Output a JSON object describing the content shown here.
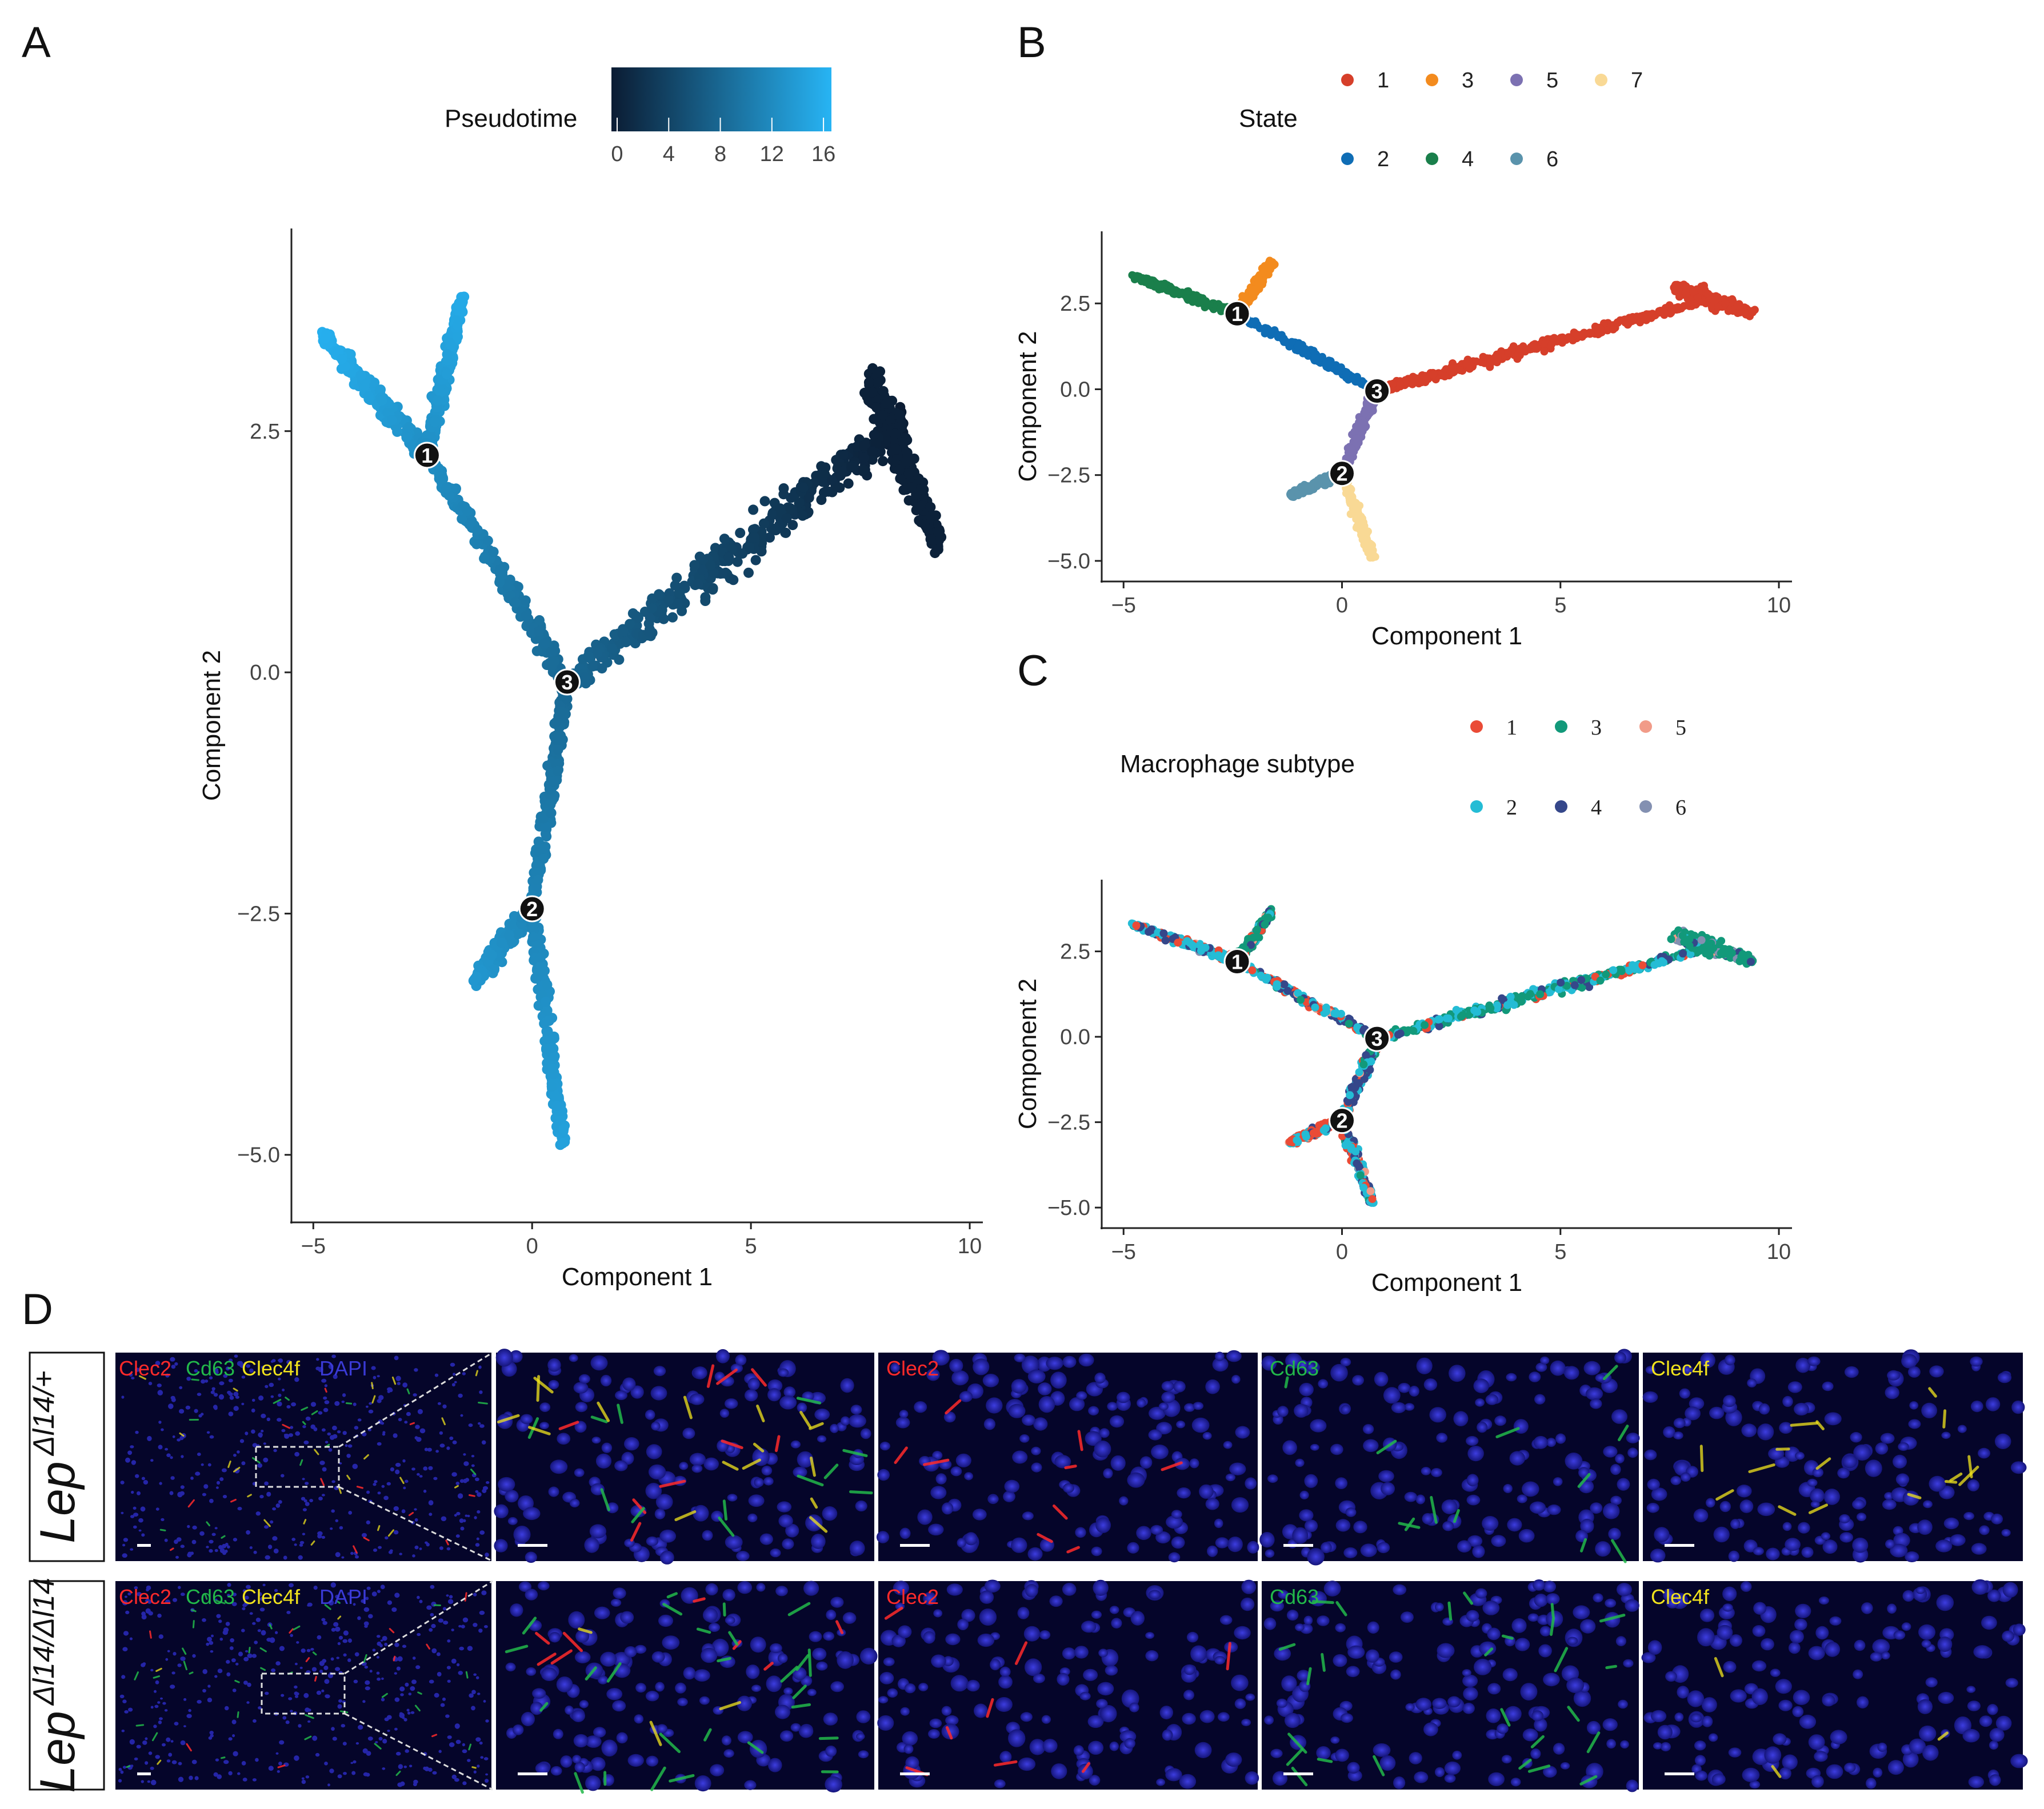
{
  "figure": {
    "panel_labels": [
      "A",
      "B",
      "C",
      "D"
    ]
  },
  "colors": {
    "pseudotime_low": "#0b1c33",
    "pseudotime_high": "#27b4f4",
    "state": [
      "#d63f2a",
      "#0f6db5",
      "#f38b1e",
      "#1a7f4b",
      "#7c71b2",
      "#5a93ac",
      "#f9d995"
    ],
    "subtype": [
      "#ea4b36",
      "#24bcd5",
      "#12997a",
      "#35478a",
      "#f19b88",
      "#8390b1"
    ],
    "channels": {
      "Clec2": "#ff2a2a",
      "Cd63": "#22b84a",
      "Clec4f": "#f2e41c",
      "DAPI": "#3a3ad6"
    }
  },
  "chart_data": [
    {
      "id": "A",
      "type": "scatter",
      "title": "",
      "xlabel": "Component 1",
      "ylabel": "Component 2",
      "xlim": [
        -5.5,
        10.3
      ],
      "ylim": [
        -5.7,
        4.6
      ],
      "x_ticks": [
        -5,
        0,
        5,
        10
      ],
      "x_tick_labels": [
        "−5",
        "0",
        "5",
        "10"
      ],
      "y_ticks": [
        -5,
        -2.5,
        0,
        2.5
      ],
      "y_tick_labels": [
        "−5.0",
        "−2.5",
        "0.0",
        "2.5"
      ],
      "color_by": "Pseudotime",
      "legend": {
        "title": "Pseudotime",
        "type": "colorbar",
        "ticks": [
          "0",
          "4",
          "8",
          "12",
          "16"
        ],
        "range": [
          0,
          16
        ]
      },
      "branch_points": [
        {
          "label": "1",
          "x": -2.4,
          "y": 2.25
        },
        {
          "label": "2",
          "x": 0.0,
          "y": -2.45
        },
        {
          "label": "3",
          "x": 0.8,
          "y": -0.1
        }
      ],
      "trajectory_segments": [
        {
          "from": [
            8.5,
            2.6
          ],
          "to": [
            0.8,
            -0.1
          ],
          "pseudotime": [
            0,
            8
          ]
        },
        {
          "from": [
            0.8,
            -0.1
          ],
          "to": [
            -2.4,
            2.25
          ],
          "pseudotime": [
            8,
            12
          ]
        },
        {
          "from": [
            -2.4,
            2.25
          ],
          "to": [
            -4.8,
            3.5
          ],
          "pseudotime": [
            12,
            15.5
          ]
        },
        {
          "from": [
            -2.4,
            2.25
          ],
          "to": [
            -1.6,
            3.9
          ],
          "pseudotime": [
            12,
            15
          ]
        },
        {
          "from": [
            0.8,
            -0.1
          ],
          "to": [
            0.0,
            -2.45
          ],
          "pseudotime": [
            8,
            11
          ]
        },
        {
          "from": [
            0.0,
            -2.45
          ],
          "to": [
            -1.3,
            -3.2
          ],
          "pseudotime": [
            11,
            13
          ]
        },
        {
          "from": [
            0.0,
            -2.45
          ],
          "to": [
            0.7,
            -4.9
          ],
          "pseudotime": [
            11,
            14
          ]
        }
      ]
    },
    {
      "id": "B",
      "type": "scatter",
      "xlabel": "Component 1",
      "ylabel": "Component 2",
      "xlim": [
        -5.5,
        10.3
      ],
      "ylim": [
        -5.6,
        4.6
      ],
      "x_ticks": [
        -5,
        0,
        5,
        10
      ],
      "x_tick_labels": [
        "−5",
        "0",
        "5",
        "10"
      ],
      "y_ticks": [
        -5,
        -2.5,
        0,
        2.5
      ],
      "y_tick_labels": [
        "−5.0",
        "−2.5",
        "0.0",
        "2.5"
      ],
      "color_by": "State",
      "legend": {
        "title": "State",
        "placement": "top",
        "entries": [
          "1",
          "2",
          "3",
          "4",
          "5",
          "6",
          "7"
        ]
      },
      "branch_points": [
        {
          "label": "1",
          "x": -2.4,
          "y": 2.2
        },
        {
          "label": "2",
          "x": 0.0,
          "y": -2.45
        },
        {
          "label": "3",
          "x": 0.8,
          "y": -0.05
        }
      ],
      "state_segments": [
        {
          "state": "1",
          "from": [
            0.8,
            -0.05
          ],
          "to": [
            8.6,
            2.7
          ]
        },
        {
          "state": "2",
          "from": [
            0.8,
            -0.05
          ],
          "to": [
            -2.4,
            2.2
          ]
        },
        {
          "state": "3",
          "from": [
            -2.4,
            2.2
          ],
          "to": [
            -1.6,
            3.7
          ]
        },
        {
          "state": "4",
          "from": [
            -2.4,
            2.2
          ],
          "to": [
            -4.8,
            3.3
          ]
        },
        {
          "state": "5",
          "from": [
            0.8,
            -0.05
          ],
          "to": [
            0.0,
            -2.45
          ]
        },
        {
          "state": "6",
          "from": [
            0.0,
            -2.45
          ],
          "to": [
            -1.2,
            -3.1
          ]
        },
        {
          "state": "7",
          "from": [
            0.0,
            -2.45
          ],
          "to": [
            0.7,
            -4.9
          ]
        }
      ]
    },
    {
      "id": "C",
      "type": "scatter",
      "xlabel": "Component 1",
      "ylabel": "Component 2",
      "xlim": [
        -5.5,
        10.3
      ],
      "ylim": [
        -5.6,
        4.6
      ],
      "x_ticks": [
        -5,
        0,
        5,
        10
      ],
      "x_tick_labels": [
        "−5",
        "0",
        "5",
        "10"
      ],
      "y_ticks": [
        -5,
        -2.5,
        0,
        2.5
      ],
      "y_tick_labels": [
        "−5.0",
        "−2.5",
        "0.0",
        "2.5"
      ],
      "color_by": "Macrophage subtype",
      "legend": {
        "title": "Macrophage subtype",
        "placement": "top",
        "entries": [
          "1",
          "2",
          "3",
          "4",
          "5",
          "6"
        ]
      },
      "branch_points": [
        {
          "label": "1",
          "x": -2.4,
          "y": 2.2
        },
        {
          "label": "2",
          "x": 0.0,
          "y": -2.45
        },
        {
          "label": "3",
          "x": 0.8,
          "y": -0.05
        }
      ]
    }
  ],
  "panel_d": {
    "rows": [
      {
        "genotype": "Lep",
        "superscript": "Δl14/+",
        "overview_labels": [
          "Clec2",
          "Cd63",
          "Clec4f",
          "DAPI"
        ],
        "zoom_labels": [
          "Clec2",
          "Cd63",
          "Clec4f"
        ]
      },
      {
        "genotype": "Lep",
        "superscript": "Δl14/Δl14",
        "overview_labels": [
          "Clec2",
          "Cd63",
          "Clec4f",
          "DAPI"
        ],
        "zoom_labels": [
          "Clec2",
          "Cd63",
          "Clec4f"
        ]
      }
    ]
  }
}
